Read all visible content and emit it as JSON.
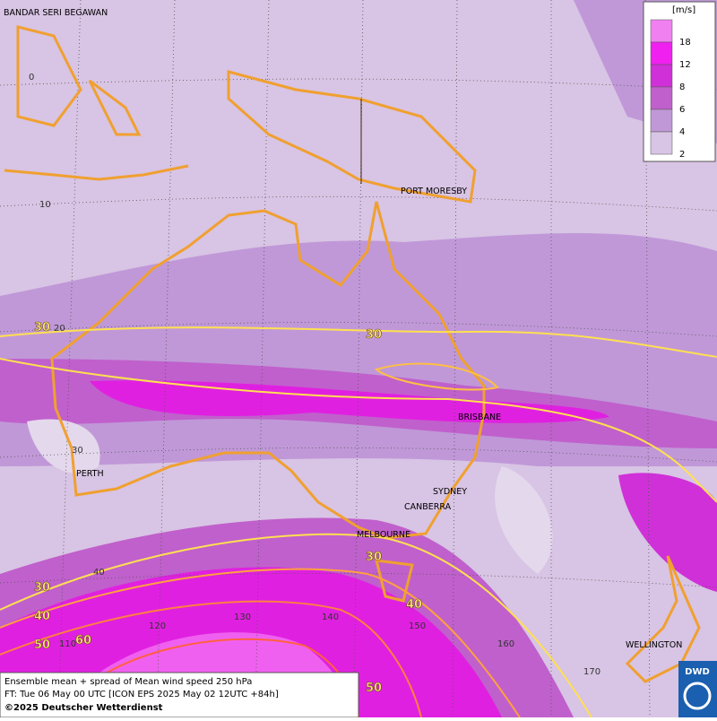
{
  "map": {
    "cities": [
      "BANDAR SERI BEGAWAN",
      "PORT MORESBY",
      "BRISBANE",
      "PERTH",
      "SYDNEY",
      "CANBERRA",
      "MELBOURNE",
      "WELLINGTON"
    ],
    "lat_labels": [
      "0",
      "10",
      "20",
      "30",
      "40"
    ],
    "lon_labels": [
      "110",
      "120",
      "130",
      "140",
      "150",
      "160",
      "170"
    ],
    "contour_labels": [
      "30",
      "30",
      "30",
      "30",
      "40",
      "40",
      "50",
      "60",
      "50"
    ],
    "legend": {
      "unit": "[m/s]",
      "levels": [
        {
          "label": "18",
          "color": "#f080f0"
        },
        {
          "label": "12",
          "color": "#f020f0"
        },
        {
          "label": "8",
          "color": "#d030d8"
        },
        {
          "label": "6",
          "color": "#c060cc"
        },
        {
          "label": "4",
          "color": "#c098d8"
        },
        {
          "label": "2",
          "color": "#d8c4e4"
        }
      ]
    },
    "footer": [
      "Ensemble mean + spread of Mean wind speed 250 hPa",
      "FT: Tue 06 May 00 UTC [ICON EPS 2025 May 02 12UTC +84h]",
      "©2025 Deutscher Wetterdienst"
    ],
    "logo": "DWD"
  }
}
